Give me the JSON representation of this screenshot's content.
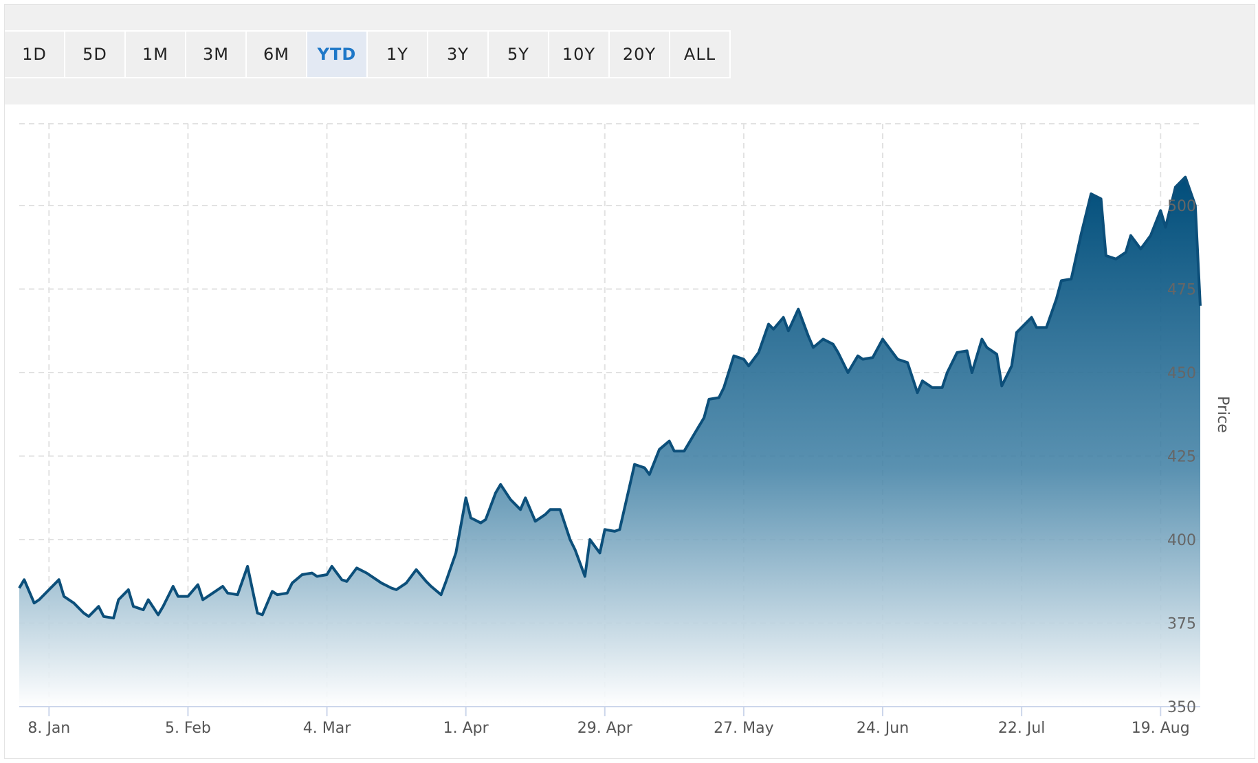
{
  "range_selector": {
    "buttons": [
      "1D",
      "5D",
      "1M",
      "3M",
      "6M",
      "YTD",
      "1Y",
      "3Y",
      "5Y",
      "10Y",
      "20Y",
      "ALL"
    ],
    "selected": "YTD"
  },
  "colors": {
    "line": "#0c4f7a",
    "area_top": "#004d7a",
    "area_bottom": "#ffffff",
    "selected_button_text": "#1f78c8",
    "selected_button_bg": "#e3e9f3"
  },
  "chart_data": {
    "type": "area",
    "title": "",
    "xlabel": "",
    "ylabel": "Price",
    "y_axis_side": "right",
    "ylim": [
      350,
      508
    ],
    "y_ticks": [
      350,
      375,
      400,
      425,
      450,
      475,
      500
    ],
    "xlim": [
      "2024-01-02",
      "2024-08-27"
    ],
    "x_ticks": [
      {
        "date": "2024-01-08",
        "label": "8. Jan"
      },
      {
        "date": "2024-02-05",
        "label": "5. Feb"
      },
      {
        "date": "2024-03-04",
        "label": "4. Mar"
      },
      {
        "date": "2024-04-01",
        "label": "1. Apr"
      },
      {
        "date": "2024-04-29",
        "label": "29. Apr"
      },
      {
        "date": "2024-05-27",
        "label": "27. May"
      },
      {
        "date": "2024-06-24",
        "label": "24. Jun"
      },
      {
        "date": "2024-07-22",
        "label": "22. Jul"
      },
      {
        "date": "2024-08-19",
        "label": "19. Aug"
      }
    ],
    "grid": true,
    "legend": "none",
    "series": [
      {
        "points": [
          [
            "2024-01-02",
            385.5
          ],
          [
            "2024-01-03",
            388
          ],
          [
            "2024-01-05",
            381
          ],
          [
            "2024-01-06",
            382
          ],
          [
            "2024-01-08",
            385
          ],
          [
            "2024-01-10",
            388
          ],
          [
            "2024-01-11",
            383
          ],
          [
            "2024-01-13",
            381
          ],
          [
            "2024-01-15",
            378
          ],
          [
            "2024-01-16",
            377
          ],
          [
            "2024-01-18",
            380
          ],
          [
            "2024-01-19",
            377
          ],
          [
            "2024-01-21",
            376.5
          ],
          [
            "2024-01-22",
            382
          ],
          [
            "2024-01-24",
            385
          ],
          [
            "2024-01-25",
            380
          ],
          [
            "2024-01-27",
            379
          ],
          [
            "2024-01-28",
            382
          ],
          [
            "2024-01-30",
            377.5
          ],
          [
            "2024-01-31",
            380
          ],
          [
            "2024-02-02",
            386
          ],
          [
            "2024-02-03",
            383
          ],
          [
            "2024-02-05",
            383
          ],
          [
            "2024-02-07",
            386.5
          ],
          [
            "2024-02-08",
            382
          ],
          [
            "2024-02-10",
            384
          ],
          [
            "2024-02-12",
            386
          ],
          [
            "2024-02-13",
            384
          ],
          [
            "2024-02-15",
            383.5
          ],
          [
            "2024-02-17",
            392
          ],
          [
            "2024-02-19",
            378
          ],
          [
            "2024-02-20",
            377.5
          ],
          [
            "2024-02-22",
            384.5
          ],
          [
            "2024-02-23",
            383.5
          ],
          [
            "2024-02-25",
            384
          ],
          [
            "2024-02-26",
            387
          ],
          [
            "2024-02-28",
            389.5
          ],
          [
            "2024-03-01",
            390
          ],
          [
            "2024-03-02",
            389
          ],
          [
            "2024-03-04",
            389.5
          ],
          [
            "2024-03-05",
            392
          ],
          [
            "2024-03-07",
            388
          ],
          [
            "2024-03-08",
            387.5
          ],
          [
            "2024-03-10",
            391.5
          ],
          [
            "2024-03-12",
            390
          ],
          [
            "2024-03-14",
            388
          ],
          [
            "2024-03-15",
            387
          ],
          [
            "2024-03-17",
            385.5
          ],
          [
            "2024-03-18",
            385
          ],
          [
            "2024-03-20",
            387
          ],
          [
            "2024-03-22",
            391
          ],
          [
            "2024-03-24",
            387.5
          ],
          [
            "2024-03-25",
            386
          ],
          [
            "2024-03-27",
            383.5
          ],
          [
            "2024-03-28",
            387.5
          ],
          [
            "2024-03-30",
            396
          ],
          [
            "2024-04-01",
            412.5
          ],
          [
            "2024-04-02",
            406.5
          ],
          [
            "2024-04-04",
            405
          ],
          [
            "2024-04-05",
            406
          ],
          [
            "2024-04-07",
            414
          ],
          [
            "2024-04-08",
            416.5
          ],
          [
            "2024-04-10",
            412
          ],
          [
            "2024-04-12",
            409
          ],
          [
            "2024-04-13",
            412.5
          ],
          [
            "2024-04-15",
            405.5
          ],
          [
            "2024-04-17",
            407.5
          ],
          [
            "2024-04-18",
            409
          ],
          [
            "2024-04-20",
            409
          ],
          [
            "2024-04-22",
            400
          ],
          [
            "2024-04-23",
            397
          ],
          [
            "2024-04-25",
            389
          ],
          [
            "2024-04-26",
            400
          ],
          [
            "2024-04-28",
            396
          ],
          [
            "2024-04-29",
            403
          ],
          [
            "2024-05-01",
            402.5
          ],
          [
            "2024-05-02",
            403
          ],
          [
            "2024-05-04",
            416
          ],
          [
            "2024-05-05",
            422.5
          ],
          [
            "2024-05-07",
            421.5
          ],
          [
            "2024-05-08",
            419.5
          ],
          [
            "2024-05-10",
            427
          ],
          [
            "2024-05-12",
            429.5
          ],
          [
            "2024-05-13",
            426.5
          ],
          [
            "2024-05-15",
            426.5
          ],
          [
            "2024-05-17",
            431.5
          ],
          [
            "2024-05-19",
            436.5
          ],
          [
            "2024-05-20",
            442
          ],
          [
            "2024-05-22",
            442.5
          ],
          [
            "2024-05-23",
            445.5
          ],
          [
            "2024-05-25",
            455
          ],
          [
            "2024-05-27",
            454
          ],
          [
            "2024-05-28",
            452
          ],
          [
            "2024-05-30",
            456
          ],
          [
            "2024-06-01",
            464.5
          ],
          [
            "2024-06-02",
            463
          ],
          [
            "2024-06-04",
            466.5
          ],
          [
            "2024-06-05",
            462.5
          ],
          [
            "2024-06-07",
            469
          ],
          [
            "2024-06-09",
            461
          ],
          [
            "2024-06-10",
            457.5
          ],
          [
            "2024-06-12",
            460
          ],
          [
            "2024-06-14",
            458.5
          ],
          [
            "2024-06-15",
            456
          ],
          [
            "2024-06-17",
            450
          ],
          [
            "2024-06-19",
            455
          ],
          [
            "2024-06-20",
            454
          ],
          [
            "2024-06-22",
            454.5
          ],
          [
            "2024-06-24",
            460
          ],
          [
            "2024-06-25",
            458
          ],
          [
            "2024-06-27",
            454
          ],
          [
            "2024-06-29",
            453
          ],
          [
            "2024-07-01",
            444
          ],
          [
            "2024-07-02",
            447.5
          ],
          [
            "2024-07-04",
            445.5
          ],
          [
            "2024-07-06",
            445.5
          ],
          [
            "2024-07-07",
            450
          ],
          [
            "2024-07-09",
            456
          ],
          [
            "2024-07-11",
            456.5
          ],
          [
            "2024-07-12",
            450
          ],
          [
            "2024-07-14",
            460
          ],
          [
            "2024-07-15",
            457.5
          ],
          [
            "2024-07-17",
            455.5
          ],
          [
            "2024-07-18",
            446
          ],
          [
            "2024-07-20",
            452
          ],
          [
            "2024-07-21",
            462
          ],
          [
            "2024-07-22",
            463.5
          ],
          [
            "2024-07-24",
            466.5
          ],
          [
            "2024-07-25",
            463.5
          ],
          [
            "2024-07-27",
            463.5
          ],
          [
            "2024-07-29",
            472
          ],
          [
            "2024-07-30",
            477.5
          ],
          [
            "2024-08-01",
            478
          ],
          [
            "2024-08-03",
            491.5
          ],
          [
            "2024-08-05",
            503.5
          ],
          [
            "2024-08-07",
            502
          ],
          [
            "2024-08-08",
            485
          ],
          [
            "2024-08-10",
            484
          ],
          [
            "2024-08-12",
            486
          ],
          [
            "2024-08-13",
            491
          ],
          [
            "2024-08-15",
            487
          ],
          [
            "2024-08-17",
            491
          ],
          [
            "2024-08-19",
            498.5
          ],
          [
            "2024-08-20",
            493.5
          ],
          [
            "2024-08-22",
            505.5
          ],
          [
            "2024-08-24",
            508.5
          ],
          [
            "2024-08-26",
            500
          ],
          [
            "2024-08-27",
            470
          ]
        ]
      }
    ]
  }
}
